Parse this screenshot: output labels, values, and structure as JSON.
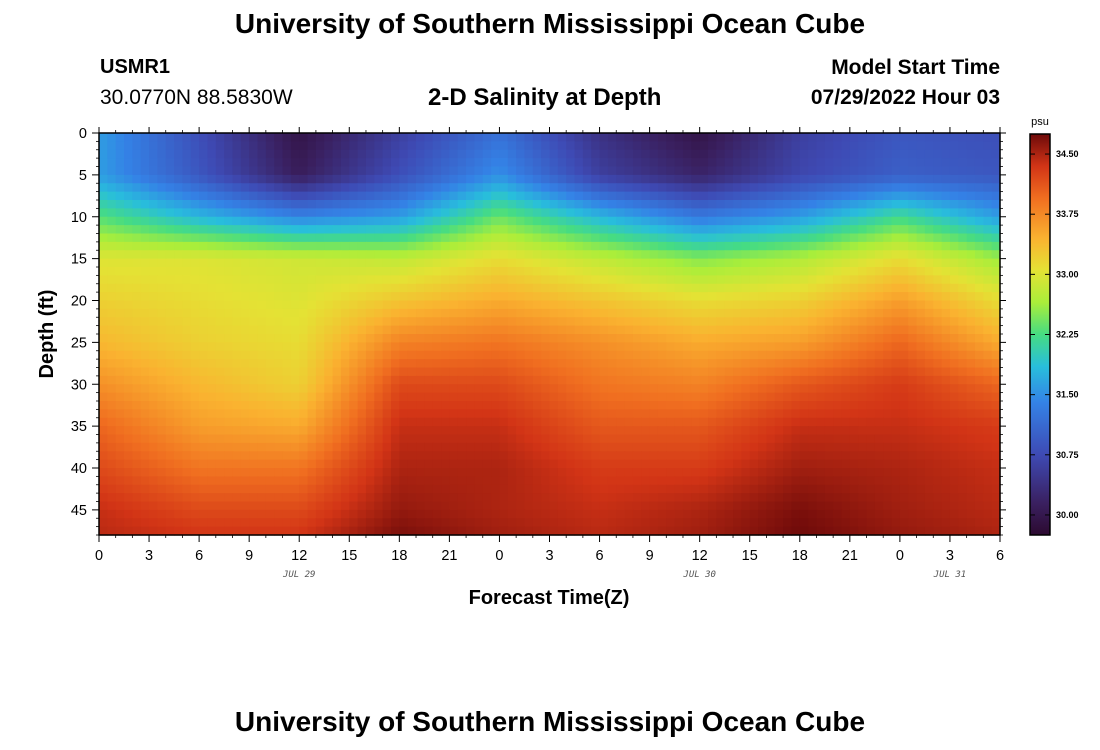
{
  "header": {
    "title": "University of Southern Mississippi Ocean Cube",
    "station": "USMR1",
    "coords": "30.0770N  88.5830W",
    "subtitle": "2-D Salinity at Depth",
    "model_start_label": "Model Start Time",
    "model_start_value": "07/29/2022 Hour 03"
  },
  "footer": {
    "title": "University of Southern Mississippi Ocean Cube"
  },
  "chart_data": {
    "type": "heatmap",
    "title": "2-D Salinity at Depth",
    "xlabel": "Forecast Time(Z)",
    "ylabel": "Depth (ft)",
    "x_range_hours": [
      0,
      54
    ],
    "x_tick_hours": [
      0,
      3,
      6,
      9,
      12,
      15,
      18,
      21,
      24,
      27,
      30,
      33,
      36,
      39,
      42,
      45,
      48,
      51,
      54
    ],
    "x_tick_labels": [
      "0",
      "3",
      "6",
      "9",
      "12",
      "15",
      "18",
      "21",
      "0",
      "3",
      "6",
      "9",
      "12",
      "15",
      "18",
      "21",
      "0",
      "3",
      "6"
    ],
    "date_labels": [
      {
        "text": "JUL 29",
        "hour": 12
      },
      {
        "text": "JUL 30",
        "hour": 36
      },
      {
        "text": "JUL 31",
        "hour": 51
      }
    ],
    "y_range": [
      0,
      48
    ],
    "y_inverted": true,
    "y_ticks": [
      0,
      5,
      10,
      15,
      20,
      25,
      30,
      35,
      40,
      45
    ],
    "y_tick_labels": [
      "0",
      "5",
      "10",
      "15",
      "20",
      "25",
      "30",
      "35",
      "40",
      "45"
    ],
    "colorbar": {
      "unit": "psu",
      "range": [
        29.75,
        34.75
      ],
      "ticks": [
        30.0,
        30.75,
        31.5,
        32.25,
        33.0,
        33.75,
        34.5
      ],
      "tick_labels": [
        "30.00",
        "30.75",
        "31.50",
        "32.25",
        "33.00",
        "33.75",
        "34.50"
      ]
    },
    "hours": [
      0,
      6,
      12,
      18,
      24,
      30,
      36,
      42,
      48,
      54
    ],
    "depths": [
      0,
      5,
      10,
      15,
      20,
      25,
      30,
      35,
      40,
      45,
      48
    ],
    "salinity": [
      [
        31.6,
        30.8,
        29.95,
        30.6,
        31.2,
        30.4,
        29.95,
        30.6,
        30.9,
        30.8
      ],
      [
        31.6,
        30.9,
        30.1,
        30.8,
        31.5,
        30.6,
        30.2,
        30.7,
        31.0,
        30.9
      ],
      [
        32.3,
        31.8,
        31.4,
        31.6,
        32.4,
        31.8,
        31.3,
        31.6,
        32.2,
        31.6
      ],
      [
        33.0,
        33.0,
        32.9,
        32.8,
        33.1,
        32.8,
        32.5,
        32.7,
        33.1,
        32.6
      ],
      [
        33.2,
        33.1,
        33.0,
        33.3,
        33.5,
        33.3,
        33.1,
        33.2,
        33.6,
        33.1
      ],
      [
        33.4,
        33.2,
        33.1,
        33.8,
        33.9,
        33.7,
        33.5,
        33.6,
        34.0,
        33.5
      ],
      [
        33.7,
        33.4,
        33.2,
        34.2,
        34.2,
        33.9,
        33.8,
        34.1,
        34.3,
        34.0
      ],
      [
        34.0,
        33.6,
        33.5,
        34.4,
        34.4,
        34.1,
        34.1,
        34.4,
        34.4,
        34.3
      ],
      [
        34.2,
        33.9,
        33.9,
        34.5,
        34.5,
        34.3,
        34.3,
        34.55,
        34.5,
        34.4
      ],
      [
        34.4,
        34.2,
        34.2,
        34.6,
        34.5,
        34.4,
        34.5,
        34.7,
        34.55,
        34.45
      ],
      [
        34.45,
        34.35,
        34.35,
        34.7,
        34.55,
        34.45,
        34.55,
        34.75,
        34.6,
        34.5
      ]
    ]
  }
}
